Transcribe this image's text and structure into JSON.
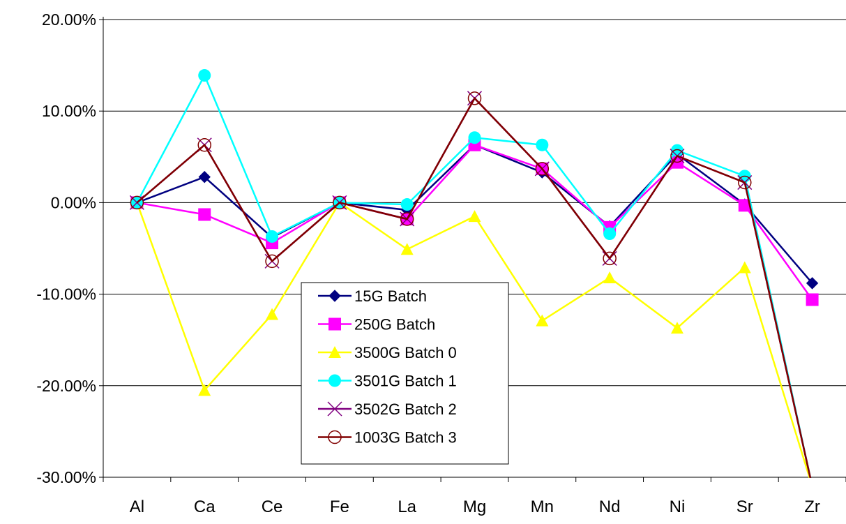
{
  "chart_data": {
    "type": "line",
    "categories": [
      "Al",
      "Ca",
      "Ce",
      "Fe",
      "La",
      "Mg",
      "Mn",
      "Nd",
      "Ni",
      "Sr",
      "Zr"
    ],
    "y_ticks": [
      "20.00%",
      "10.00%",
      "0.00%",
      "-10.00%",
      "-20.00%",
      "-30.00%"
    ],
    "ylim": [
      -30,
      20
    ],
    "y_unit": "percent",
    "grid": "horizontal major gridlines",
    "legend_position": "center, inside plot area",
    "series": [
      {
        "name": "15G Batch",
        "color": "#000080",
        "marker": "diamond",
        "values": [
          0,
          2.8,
          -3.8,
          0,
          -0.8,
          6.3,
          3.3,
          -2.6,
          5.3,
          -0.2,
          -8.8
        ]
      },
      {
        "name": "250G Batch",
        "color": "#FF00FF",
        "marker": "square",
        "values": [
          0,
          -1.3,
          -4.4,
          0,
          -1.8,
          6.3,
          3.7,
          -2.7,
          4.4,
          -0.3,
          -10.6
        ]
      },
      {
        "name": "3500G Batch 0",
        "color": "#FFFF00",
        "marker": "triangle",
        "values": [
          0,
          -20.5,
          -12.2,
          0,
          -5.1,
          -1.5,
          -12.9,
          -8.2,
          -13.7,
          -7.1,
          -31
        ]
      },
      {
        "name": "3501G Batch 1",
        "color": "#00FFFF",
        "marker": "circle",
        "values": [
          0,
          13.9,
          -3.7,
          0,
          -0.2,
          7.1,
          6.3,
          -3.4,
          5.7,
          2.9,
          -31
        ]
      },
      {
        "name": "3502G Batch 2",
        "color": "#800080",
        "marker": "x",
        "values": [
          0,
          6.3,
          -6.4,
          0,
          -1.8,
          11.4,
          3.7,
          -6.1,
          5.1,
          2.2,
          -31
        ]
      },
      {
        "name": "1003G Batch 3",
        "color": "#800000",
        "marker": "open-circle",
        "values": [
          0,
          6.3,
          -6.4,
          0,
          -1.8,
          11.4,
          3.7,
          -6.1,
          5.1,
          2.2,
          -31
        ]
      }
    ]
  }
}
